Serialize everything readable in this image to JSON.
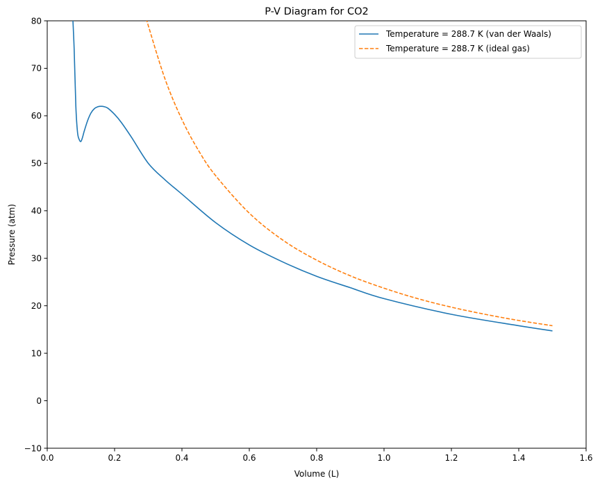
{
  "chart_data": {
    "type": "line",
    "title": "P-V Diagram for CO2",
    "xlabel": "Volume (L)",
    "ylabel": "Pressure (atm)",
    "xlim": [
      0.0,
      1.6
    ],
    "ylim": [
      -10,
      80
    ],
    "xticks": [
      0.0,
      0.2,
      0.4,
      0.6,
      0.8,
      1.0,
      1.2,
      1.4,
      1.6
    ],
    "xtick_labels": [
      "0.0",
      "0.2",
      "0.4",
      "0.6",
      "0.8",
      "1.0",
      "1.2",
      "1.4",
      "1.6"
    ],
    "yticks": [
      -10,
      0,
      10,
      20,
      30,
      40,
      50,
      60,
      70,
      80
    ],
    "ytick_labels": [
      "−10",
      "0",
      "10",
      "20",
      "30",
      "40",
      "50",
      "60",
      "70",
      "80"
    ],
    "grid": false,
    "legend_position": "top-right",
    "series": [
      {
        "name": "Temperature = 288.7 K (van der Waals)",
        "color": "#1f77b4",
        "style": "solid",
        "x": [
          0.075,
          0.08,
          0.085,
          0.09,
          0.095,
          0.1,
          0.105,
          0.11,
          0.12,
          0.13,
          0.14,
          0.15,
          0.16,
          0.17,
          0.18,
          0.2,
          0.22,
          0.25,
          0.3,
          0.35,
          0.4,
          0.5,
          0.6,
          0.7,
          0.8,
          0.9,
          1.0,
          1.2,
          1.4,
          1.5
        ],
        "y": [
          82,
          74,
          62,
          56.5,
          55,
          54.6,
          55.5,
          56.8,
          59,
          60.6,
          61.5,
          61.9,
          62,
          61.9,
          61.6,
          60.3,
          58.6,
          55.5,
          50,
          46.5,
          43.5,
          37.5,
          32.8,
          29.2,
          26.2,
          23.8,
          21.5,
          18.2,
          15.8,
          14.7
        ]
      },
      {
        "name": "Temperature = 288.7 K (ideal gas)",
        "color": "#ff7f0e",
        "style": "dashed",
        "x": [
          0.295,
          0.3,
          0.35,
          0.4,
          0.45,
          0.5,
          0.6,
          0.7,
          0.8,
          0.9,
          1.0,
          1.1,
          1.2,
          1.3,
          1.4,
          1.5
        ],
        "y": [
          80.3,
          79,
          67.7,
          59.2,
          52.6,
          47.4,
          39.5,
          33.8,
          29.6,
          26.3,
          23.7,
          21.5,
          19.7,
          18.2,
          16.9,
          15.8
        ]
      }
    ]
  }
}
